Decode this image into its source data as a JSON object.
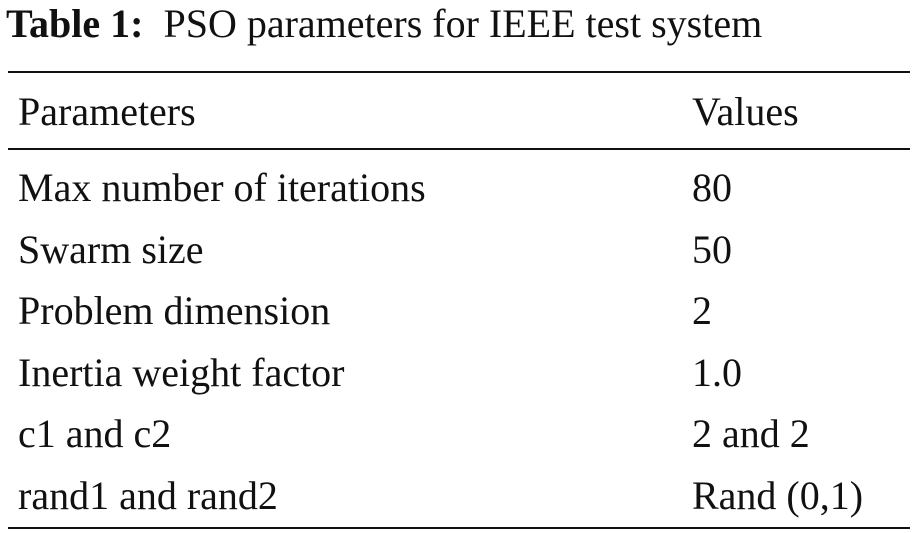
{
  "table": {
    "title": {
      "label": "Table 1:",
      "text": "PSO parameters for IEEE test system"
    },
    "header": [
      "Parameters",
      "Values"
    ],
    "rows": [
      [
        "Max number of iterations",
        "80"
      ],
      [
        "Swarm size",
        "50"
      ],
      [
        "Problem dimension",
        "2"
      ],
      [
        "Inertia weight factor",
        "1.0"
      ],
      [
        "c1 and c2",
        "2 and 2"
      ],
      [
        "rand1 and rand2",
        "Rand (0,1)"
      ]
    ]
  }
}
